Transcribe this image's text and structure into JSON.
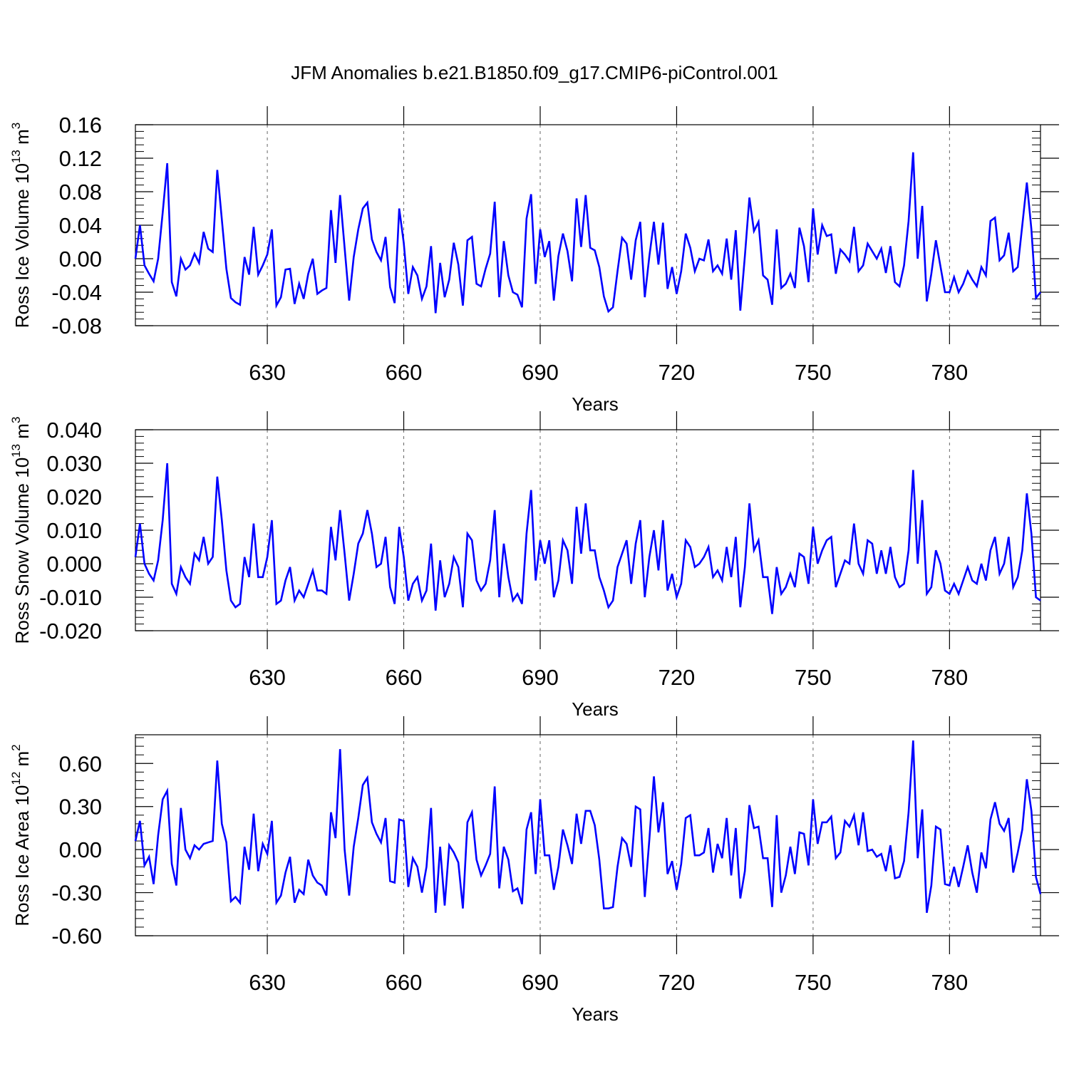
{
  "title": "JFM Anomalies b.e21.B1850.f09_g17.CMIP6-piControl.001",
  "line_color": "#0000ff",
  "chart_data": [
    {
      "type": "line",
      "id": "ice-volume",
      "ylabel_main": "Ross Ice Volume 10",
      "ylabel_exp": "13",
      "ylabel_unit": "m",
      "ylabel_unit_exp": "3",
      "xlabel": "Years",
      "xlim": [
        601,
        800
      ],
      "ylim": [
        -0.08,
        0.16
      ],
      "x_ticks": [
        630,
        660,
        690,
        720,
        750,
        780
      ],
      "x_tick_labels": [
        "630",
        "660",
        "690",
        "720",
        "750",
        "780"
      ],
      "y_ticks": [
        -0.08,
        -0.04,
        0.0,
        0.04,
        0.08,
        0.12,
        0.16
      ],
      "y_tick_labels": [
        "-0.08",
        "-0.04",
        "0.00",
        "0.04",
        "0.08",
        "0.12",
        "0.16"
      ],
      "grid": "vertical dashed at x ticks",
      "series": [
        {
          "name": "Ross Ice Volume",
          "x_start": 601,
          "values": [
            0.0,
            0.04,
            -0.008,
            -0.018,
            -0.027,
            0.0,
            0.055,
            0.114,
            -0.028,
            -0.045,
            0.0,
            -0.013,
            -0.008,
            0.006,
            -0.005,
            0.032,
            0.012,
            0.008,
            0.106,
            0.047,
            -0.012,
            -0.047,
            -0.052,
            -0.055,
            0.002,
            -0.019,
            0.038,
            -0.019,
            -0.008,
            0.005,
            0.035,
            -0.056,
            -0.046,
            -0.013,
            -0.012,
            -0.054,
            -0.03,
            -0.048,
            -0.018,
            0.0,
            -0.042,
            -0.038,
            -0.035,
            0.058,
            -0.005,
            0.076,
            0.013,
            -0.05,
            0.002,
            0.035,
            0.06,
            0.067,
            0.023,
            0.008,
            -0.002,
            0.026,
            -0.034,
            -0.053,
            0.06,
            0.019,
            -0.042,
            -0.01,
            -0.02,
            -0.048,
            -0.033,
            0.015,
            -0.065,
            -0.005,
            -0.046,
            -0.025,
            0.019,
            -0.007,
            -0.056,
            0.022,
            0.026,
            -0.03,
            -0.033,
            -0.012,
            0.006,
            0.068,
            -0.046,
            0.021,
            -0.02,
            -0.04,
            -0.043,
            -0.058,
            0.048,
            0.077,
            -0.03,
            0.035,
            0.002,
            0.021,
            -0.05,
            0.003,
            0.03,
            0.009,
            -0.027,
            0.072,
            0.014,
            0.076,
            0.013,
            0.01,
            -0.01,
            -0.045,
            -0.063,
            -0.058,
            -0.015,
            0.025,
            0.018,
            -0.025,
            0.022,
            0.044,
            -0.046,
            0.003,
            0.044,
            -0.007,
            0.043,
            -0.036,
            -0.01,
            -0.042,
            -0.015,
            0.03,
            0.013,
            -0.015,
            0.0,
            -0.002,
            0.023,
            -0.015,
            -0.008,
            -0.018,
            0.024,
            -0.025,
            0.034,
            -0.062,
            0.003,
            0.073,
            0.033,
            0.044,
            -0.02,
            -0.025,
            -0.055,
            0.035,
            -0.035,
            -0.03,
            -0.018,
            -0.035,
            0.037,
            0.015,
            -0.028,
            0.06,
            0.005,
            0.04,
            0.027,
            0.029,
            -0.018,
            0.011,
            0.005,
            -0.003,
            0.038,
            -0.015,
            -0.008,
            0.018,
            0.009,
            0.0,
            0.012,
            -0.017,
            0.015,
            -0.028,
            -0.033,
            -0.008,
            0.045,
            0.127,
            0.0,
            0.063,
            -0.051,
            -0.018,
            0.022,
            -0.009,
            -0.04,
            -0.04,
            -0.022,
            -0.04,
            -0.03,
            -0.015,
            -0.025,
            -0.033,
            -0.01,
            -0.02,
            0.045,
            0.049,
            -0.002,
            0.004,
            0.031,
            -0.015,
            -0.01,
            0.04,
            0.091,
            0.035,
            -0.047,
            -0.04
          ]
        }
      ]
    },
    {
      "type": "line",
      "id": "snow-volume",
      "ylabel_main": "Ross Snow Volume 10",
      "ylabel_exp": "13",
      "ylabel_unit": "m",
      "ylabel_unit_exp": "3",
      "xlabel": "Years",
      "xlim": [
        601,
        800
      ],
      "ylim": [
        -0.02,
        0.04
      ],
      "x_ticks": [
        630,
        660,
        690,
        720,
        750,
        780
      ],
      "x_tick_labels": [
        "630",
        "660",
        "690",
        "720",
        "750",
        "780"
      ],
      "y_ticks": [
        -0.02,
        -0.01,
        0.0,
        0.01,
        0.02,
        0.03,
        0.04
      ],
      "y_tick_labels": [
        "-0.020",
        "-0.010",
        "0.000",
        "0.010",
        "0.020",
        "0.030",
        "0.040"
      ],
      "grid": "vertical dashed at x ticks",
      "series": [
        {
          "name": "Ross Snow Volume",
          "x_start": 601,
          "values": [
            0.002,
            0.012,
            0.0,
            -0.003,
            -0.005,
            0.001,
            0.013,
            0.03,
            -0.006,
            -0.009,
            -0.001,
            -0.004,
            -0.006,
            0.003,
            0.001,
            0.008,
            0.0,
            0.002,
            0.026,
            0.013,
            -0.002,
            -0.011,
            -0.013,
            -0.012,
            0.002,
            -0.004,
            0.012,
            -0.004,
            -0.004,
            0.002,
            0.013,
            -0.012,
            -0.011,
            -0.005,
            -0.001,
            -0.011,
            -0.008,
            -0.01,
            -0.006,
            -0.002,
            -0.008,
            -0.008,
            -0.009,
            0.011,
            0.001,
            0.016,
            0.003,
            -0.011,
            -0.003,
            0.006,
            0.009,
            0.016,
            0.009,
            -0.001,
            0.0,
            0.008,
            -0.007,
            -0.012,
            0.011,
            0.002,
            -0.011,
            -0.006,
            -0.004,
            -0.011,
            -0.008,
            0.006,
            -0.014,
            0.001,
            -0.01,
            -0.006,
            0.002,
            -0.001,
            -0.013,
            0.009,
            0.007,
            -0.005,
            -0.008,
            -0.006,
            0.001,
            0.016,
            -0.01,
            0.006,
            -0.004,
            -0.011,
            -0.009,
            -0.012,
            0.009,
            0.022,
            -0.005,
            0.007,
            0.0,
            0.007,
            -0.01,
            -0.005,
            0.007,
            0.004,
            -0.006,
            0.017,
            0.003,
            0.018,
            0.004,
            0.004,
            -0.004,
            -0.008,
            -0.013,
            -0.011,
            -0.001,
            0.003,
            0.007,
            -0.006,
            0.006,
            0.013,
            -0.01,
            0.002,
            0.01,
            -0.002,
            0.013,
            -0.008,
            -0.003,
            -0.01,
            -0.006,
            0.007,
            0.005,
            -0.001,
            0.0,
            0.002,
            0.005,
            -0.004,
            -0.002,
            -0.005,
            0.005,
            -0.004,
            0.008,
            -0.013,
            -0.001,
            0.018,
            0.004,
            0.007,
            -0.004,
            -0.004,
            -0.015,
            -0.001,
            -0.009,
            -0.007,
            -0.003,
            -0.007,
            0.003,
            0.002,
            -0.006,
            0.011,
            0.0,
            0.004,
            0.007,
            0.008,
            -0.007,
            -0.003,
            0.001,
            0.0,
            0.012,
            0.0,
            -0.003,
            0.007,
            0.006,
            -0.003,
            0.004,
            -0.003,
            0.005,
            -0.004,
            -0.007,
            -0.006,
            0.004,
            0.028,
            0.0,
            0.019,
            -0.009,
            -0.007,
            0.004,
            0.0,
            -0.008,
            -0.009,
            -0.006,
            -0.009,
            -0.005,
            -0.001,
            -0.005,
            -0.006,
            0.0,
            -0.005,
            0.004,
            0.008,
            -0.003,
            0.0,
            0.008,
            -0.007,
            -0.004,
            0.004,
            0.021,
            0.009,
            -0.01,
            -0.011
          ]
        }
      ]
    },
    {
      "type": "line",
      "id": "ice-area",
      "ylabel_main": "Ross Ice Area 10",
      "ylabel_exp": "12",
      "ylabel_unit": "m",
      "ylabel_unit_exp": "2",
      "xlabel": "Years",
      "xlim": [
        601,
        800
      ],
      "ylim": [
        -0.6,
        0.8
      ],
      "x_ticks": [
        630,
        660,
        690,
        720,
        750,
        780
      ],
      "x_tick_labels": [
        "630",
        "660",
        "690",
        "720",
        "750",
        "780"
      ],
      "y_ticks": [
        -0.6,
        -0.3,
        0.0,
        0.3,
        0.6
      ],
      "y_tick_labels": [
        "-0.60",
        "-0.30",
        "0.00",
        "0.30",
        "0.60"
      ],
      "grid": "vertical dashed at x ticks",
      "series": [
        {
          "name": "Ross Ice Area",
          "x_start": 601,
          "values": [
            0.06,
            0.2,
            -0.11,
            -0.05,
            -0.24,
            0.1,
            0.35,
            0.41,
            -0.1,
            -0.25,
            0.29,
            0.0,
            -0.06,
            0.03,
            0.0,
            0.04,
            0.05,
            0.06,
            0.62,
            0.18,
            0.05,
            -0.36,
            -0.33,
            -0.37,
            0.02,
            -0.14,
            0.25,
            -0.15,
            0.04,
            -0.03,
            0.2,
            -0.37,
            -0.32,
            -0.16,
            -0.05,
            -0.37,
            -0.28,
            -0.31,
            -0.07,
            -0.18,
            -0.23,
            -0.25,
            -0.32,
            0.26,
            0.08,
            0.7,
            0.0,
            -0.32,
            0.02,
            0.22,
            0.45,
            0.5,
            0.19,
            0.11,
            0.05,
            0.22,
            -0.22,
            -0.23,
            0.21,
            0.2,
            -0.26,
            -0.06,
            -0.12,
            -0.3,
            -0.12,
            0.29,
            -0.44,
            0.02,
            -0.39,
            0.03,
            -0.02,
            -0.09,
            -0.41,
            0.19,
            0.26,
            -0.07,
            -0.18,
            -0.11,
            -0.03,
            0.44,
            -0.27,
            0.02,
            -0.07,
            -0.29,
            -0.27,
            -0.38,
            0.14,
            0.26,
            -0.17,
            0.35,
            -0.04,
            -0.04,
            -0.28,
            -0.12,
            0.14,
            0.03,
            -0.1,
            0.25,
            0.04,
            0.27,
            0.27,
            0.17,
            -0.07,
            -0.41,
            -0.41,
            -0.4,
            -0.12,
            0.08,
            0.04,
            -0.12,
            0.3,
            0.28,
            -0.33,
            0.07,
            0.51,
            0.12,
            0.33,
            -0.17,
            -0.08,
            -0.28,
            -0.1,
            0.22,
            0.24,
            -0.04,
            -0.04,
            -0.02,
            0.15,
            -0.16,
            0.04,
            -0.06,
            0.22,
            -0.18,
            0.15,
            -0.34,
            -0.15,
            0.31,
            0.15,
            0.16,
            -0.06,
            -0.06,
            -0.4,
            0.24,
            -0.3,
            -0.18,
            0.02,
            -0.17,
            0.12,
            0.11,
            -0.11,
            0.35,
            0.04,
            0.19,
            0.19,
            0.23,
            -0.06,
            -0.02,
            0.2,
            0.16,
            0.24,
            0.03,
            0.26,
            -0.01,
            0.0,
            -0.05,
            -0.03,
            -0.15,
            0.03,
            -0.2,
            -0.19,
            -0.08,
            0.26,
            0.76,
            -0.06,
            0.28,
            -0.44,
            -0.25,
            0.16,
            0.14,
            -0.24,
            -0.25,
            -0.12,
            -0.26,
            -0.12,
            0.03,
            -0.16,
            -0.3,
            -0.02,
            -0.13,
            0.21,
            0.33,
            0.18,
            0.13,
            0.22,
            -0.16,
            -0.02,
            0.14,
            0.49,
            0.27,
            -0.19,
            -0.31
          ]
        }
      ]
    }
  ]
}
